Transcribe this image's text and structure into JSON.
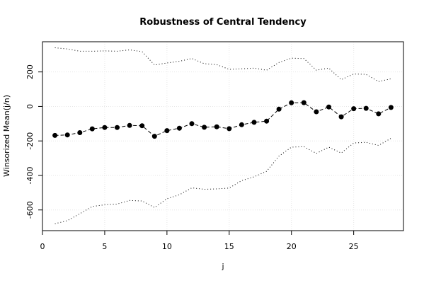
{
  "chart_data": {
    "type": "line",
    "title": "Robustness of Central Tendency",
    "xlabel": "j",
    "ylabel": "Winsorized Mean(j/n)",
    "xlim": [
      0,
      29
    ],
    "ylim": [
      -720,
      375
    ],
    "x_ticks": [
      "0",
      "5",
      "10",
      "15",
      "20",
      "25"
    ],
    "y_ticks": [
      "-600",
      "-400",
      "-200",
      "0",
      "200"
    ],
    "x_tick_values": [
      0,
      5,
      10,
      15,
      20,
      25
    ],
    "y_tick_values": [
      -600,
      -400,
      -200,
      0,
      200
    ],
    "grid": true,
    "x": [
      1,
      2,
      3,
      4,
      5,
      6,
      7,
      8,
      9,
      10,
      11,
      12,
      13,
      14,
      15,
      16,
      17,
      18,
      19,
      20,
      21,
      22,
      23,
      24,
      25,
      26,
      27,
      28
    ],
    "series": [
      {
        "values": [
          -168,
          -165,
          -152,
          -130,
          -122,
          -122,
          -110,
          -112,
          -173,
          -140,
          -126,
          -100,
          -121,
          -118,
          -129,
          -106,
          -92,
          -85,
          -16,
          21,
          22,
          -31,
          -3,
          -60,
          -13,
          -11,
          -43,
          -6
        ],
        "color": "#000000",
        "style": "points-dashed"
      },
      {
        "values": [
          340,
          333,
          320,
          320,
          322,
          320,
          328,
          318,
          240,
          252,
          262,
          278,
          248,
          242,
          215,
          218,
          222,
          210,
          255,
          280,
          278,
          210,
          222,
          155,
          188,
          186,
          144,
          160
        ],
        "color": "#000000",
        "style": "dotted"
      },
      {
        "values": [
          -680,
          -662,
          -622,
          -580,
          -570,
          -566,
          -545,
          -548,
          -586,
          -535,
          -512,
          -472,
          -480,
          -478,
          -473,
          -430,
          -408,
          -376,
          -288,
          -236,
          -233,
          -272,
          -236,
          -270,
          -212,
          -208,
          -226,
          -185
        ],
        "color": "#000000",
        "style": "dotted"
      }
    ]
  }
}
